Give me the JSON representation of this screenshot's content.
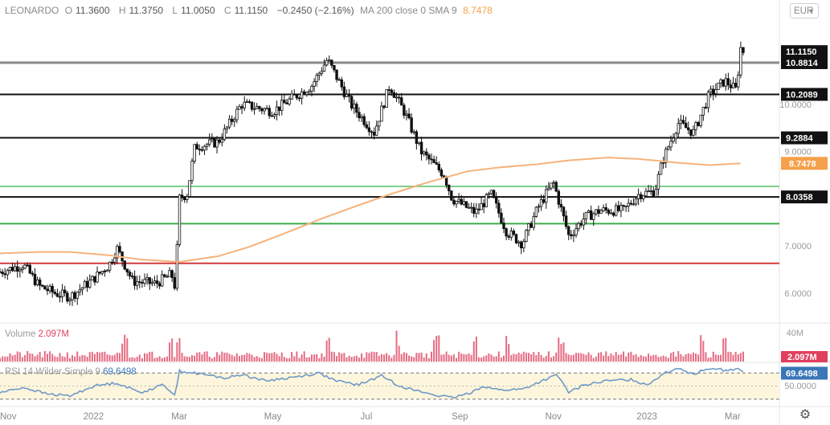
{
  "legend": {
    "symbol": "LEONARDO",
    "o_label": "O",
    "o_val": "11.3600",
    "h_label": "H",
    "h_val": "11.3750",
    "l_label": "L",
    "l_val": "11.0050",
    "c_label": "C",
    "c_val": "11.1150",
    "change": "−0.2450 (−2.16%)",
    "ma_label": "MA 200 close 0 SMA 9",
    "ma_val": "8.7478"
  },
  "currency_selector": {
    "label": "EUR"
  },
  "volume_legend": {
    "label": "Volume",
    "value": "2.097M"
  },
  "rsi_legend": {
    "label": "RSI 14 Wilder Simple 9",
    "value": "69.6498"
  },
  "colors": {
    "candle": "#111111",
    "ma": "#f5b27a",
    "level_black": "#111111",
    "level_green_light": "#7fcf8a",
    "level_green": "#3cae4a",
    "level_red": "#d23b3b",
    "current_price_line": "#8a8a8a",
    "volume": "#e56b82",
    "rsi_line": "#6f99c8",
    "rsi_band": "#fdf6dc",
    "ma_tag": "#f5a04a"
  },
  "icons": {
    "settings": "gear-icon",
    "dropdown": "chevron-down-icon"
  },
  "chart_data": {
    "type": "candlestick",
    "price_axis": {
      "ticks": [
        6.0,
        7.0,
        8.0,
        9.0,
        10.0
      ],
      "tick_labels": [
        "6.0000",
        "7.0000",
        "8.0000",
        "9.0000",
        "10.0000"
      ],
      "range": [
        5.4,
        11.8
      ]
    },
    "time_axis": {
      "labels": [
        "Nov",
        "2022",
        "Mar",
        "May",
        "Jul",
        "Sep",
        "Nov",
        "2023",
        "Mar"
      ]
    },
    "levels": [
      {
        "price": 10.8814,
        "label": "10.8814",
        "color": "gray"
      },
      {
        "price": 10.2089,
        "label": "10.2089",
        "color": "black"
      },
      {
        "price": 9.2884,
        "label": "9.2884",
        "color": "black"
      },
      {
        "price": 8.26,
        "label": "",
        "color": "light-green"
      },
      {
        "price": 8.0358,
        "label": "8.0358",
        "color": "black"
      },
      {
        "price": 7.47,
        "label": "",
        "color": "green"
      },
      {
        "price": 6.63,
        "label": "",
        "color": "red"
      }
    ],
    "last_price": {
      "value": 11.115,
      "label": "11.1150"
    },
    "ma200": {
      "label": "8.7478",
      "values": [
        {
          "t": 0,
          "v": 6.84
        },
        {
          "t": 5,
          "v": 6.87
        },
        {
          "t": 9,
          "v": 6.87
        },
        {
          "t": 14,
          "v": 6.8
        },
        {
          "t": 18,
          "v": 6.71
        },
        {
          "t": 23,
          "v": 6.66
        },
        {
          "t": 28,
          "v": 6.78
        },
        {
          "t": 32,
          "v": 6.98
        },
        {
          "t": 36,
          "v": 7.23
        },
        {
          "t": 41,
          "v": 7.56
        },
        {
          "t": 46,
          "v": 7.86
        },
        {
          "t": 50,
          "v": 8.09
        },
        {
          "t": 55,
          "v": 8.35
        },
        {
          "t": 60,
          "v": 8.58
        },
        {
          "t": 64,
          "v": 8.66
        },
        {
          "t": 69,
          "v": 8.73
        },
        {
          "t": 73,
          "v": 8.81
        },
        {
          "t": 78,
          "v": 8.87
        },
        {
          "t": 82,
          "v": 8.84
        },
        {
          "t": 87,
          "v": 8.76
        },
        {
          "t": 91,
          "v": 8.71
        },
        {
          "t": 95,
          "v": 8.7478
        }
      ]
    },
    "close_path": [
      {
        "t": 0,
        "v": 6.45
      },
      {
        "t": 3,
        "v": 6.6
      },
      {
        "t": 5,
        "v": 6.15
      },
      {
        "t": 7,
        "v": 6.0
      },
      {
        "t": 9,
        "v": 5.92
      },
      {
        "t": 12,
        "v": 6.3
      },
      {
        "t": 14,
        "v": 6.6
      },
      {
        "t": 15,
        "v": 6.95
      },
      {
        "t": 17,
        "v": 6.25
      },
      {
        "t": 20,
        "v": 6.2
      },
      {
        "t": 22,
        "v": 6.4
      },
      {
        "t": 22.5,
        "v": 6.1
      },
      {
        "t": 23,
        "v": 8.0
      },
      {
        "t": 24,
        "v": 8.1
      },
      {
        "t": 25,
        "v": 9.1
      },
      {
        "t": 28,
        "v": 9.2
      },
      {
        "t": 31,
        "v": 10.0
      },
      {
        "t": 35,
        "v": 9.85
      },
      {
        "t": 40,
        "v": 10.4
      },
      {
        "t": 42,
        "v": 10.95
      },
      {
        "t": 45,
        "v": 10.0
      },
      {
        "t": 48,
        "v": 9.4
      },
      {
        "t": 50,
        "v": 10.4
      },
      {
        "t": 52,
        "v": 9.8
      },
      {
        "t": 54,
        "v": 9.0
      },
      {
        "t": 57,
        "v": 8.5
      },
      {
        "t": 58,
        "v": 8.0
      },
      {
        "t": 61,
        "v": 7.7
      },
      {
        "t": 63,
        "v": 8.1
      },
      {
        "t": 65,
        "v": 7.3
      },
      {
        "t": 67,
        "v": 7.05
      },
      {
        "t": 69,
        "v": 7.8
      },
      {
        "t": 71,
        "v": 8.35
      },
      {
        "t": 73,
        "v": 7.2
      },
      {
        "t": 75,
        "v": 7.6
      },
      {
        "t": 77,
        "v": 7.75
      },
      {
        "t": 80,
        "v": 7.75
      },
      {
        "t": 82,
        "v": 8.1
      },
      {
        "t": 84,
        "v": 8.15
      },
      {
        "t": 85,
        "v": 8.8
      },
      {
        "t": 87,
        "v": 9.6
      },
      {
        "t": 89,
        "v": 9.4
      },
      {
        "t": 91,
        "v": 10.2
      },
      {
        "t": 93,
        "v": 10.5
      },
      {
        "t": 94.5,
        "v": 10.3
      },
      {
        "t": 95,
        "v": 11.2
      },
      {
        "t": 95.4,
        "v": 11.115
      }
    ],
    "volume": {
      "axis_label": "40M",
      "last_label": "2.097M",
      "spike_positions": [
        23,
        16,
        22,
        42,
        72,
        51,
        56,
        61,
        65,
        90,
        93
      ]
    },
    "rsi": {
      "last_label": "69.6498",
      "axis_label": "50.0000",
      "levels": [
        70,
        50,
        30
      ],
      "path": [
        {
          "t": 0,
          "v": 40
        },
        {
          "t": 3,
          "v": 48
        },
        {
          "t": 6,
          "v": 38
        },
        {
          "t": 9,
          "v": 35
        },
        {
          "t": 12,
          "v": 50
        },
        {
          "t": 15,
          "v": 55
        },
        {
          "t": 18,
          "v": 40
        },
        {
          "t": 21,
          "v": 52
        },
        {
          "t": 22.5,
          "v": 36
        },
        {
          "t": 23,
          "v": 73
        },
        {
          "t": 26,
          "v": 68
        },
        {
          "t": 29,
          "v": 62
        },
        {
          "t": 31,
          "v": 68
        },
        {
          "t": 34,
          "v": 58
        },
        {
          "t": 38,
          "v": 64
        },
        {
          "t": 41,
          "v": 70
        },
        {
          "t": 43,
          "v": 58
        },
        {
          "t": 46,
          "v": 52
        },
        {
          "t": 49,
          "v": 66
        },
        {
          "t": 51,
          "v": 52
        },
        {
          "t": 53,
          "v": 44
        },
        {
          "t": 56,
          "v": 36
        },
        {
          "t": 58,
          "v": 32
        },
        {
          "t": 60,
          "v": 38
        },
        {
          "t": 62,
          "v": 50
        },
        {
          "t": 64,
          "v": 44
        },
        {
          "t": 67,
          "v": 45
        },
        {
          "t": 70,
          "v": 60
        },
        {
          "t": 71.5,
          "v": 67
        },
        {
          "t": 73,
          "v": 40
        },
        {
          "t": 75,
          "v": 52
        },
        {
          "t": 78,
          "v": 58
        },
        {
          "t": 81,
          "v": 60
        },
        {
          "t": 83,
          "v": 52
        },
        {
          "t": 85,
          "v": 68
        },
        {
          "t": 87,
          "v": 78
        },
        {
          "t": 89,
          "v": 68
        },
        {
          "t": 91,
          "v": 78
        },
        {
          "t": 93,
          "v": 74
        },
        {
          "t": 95,
          "v": 76
        },
        {
          "t": 95.4,
          "v": 69.6498
        }
      ]
    }
  }
}
